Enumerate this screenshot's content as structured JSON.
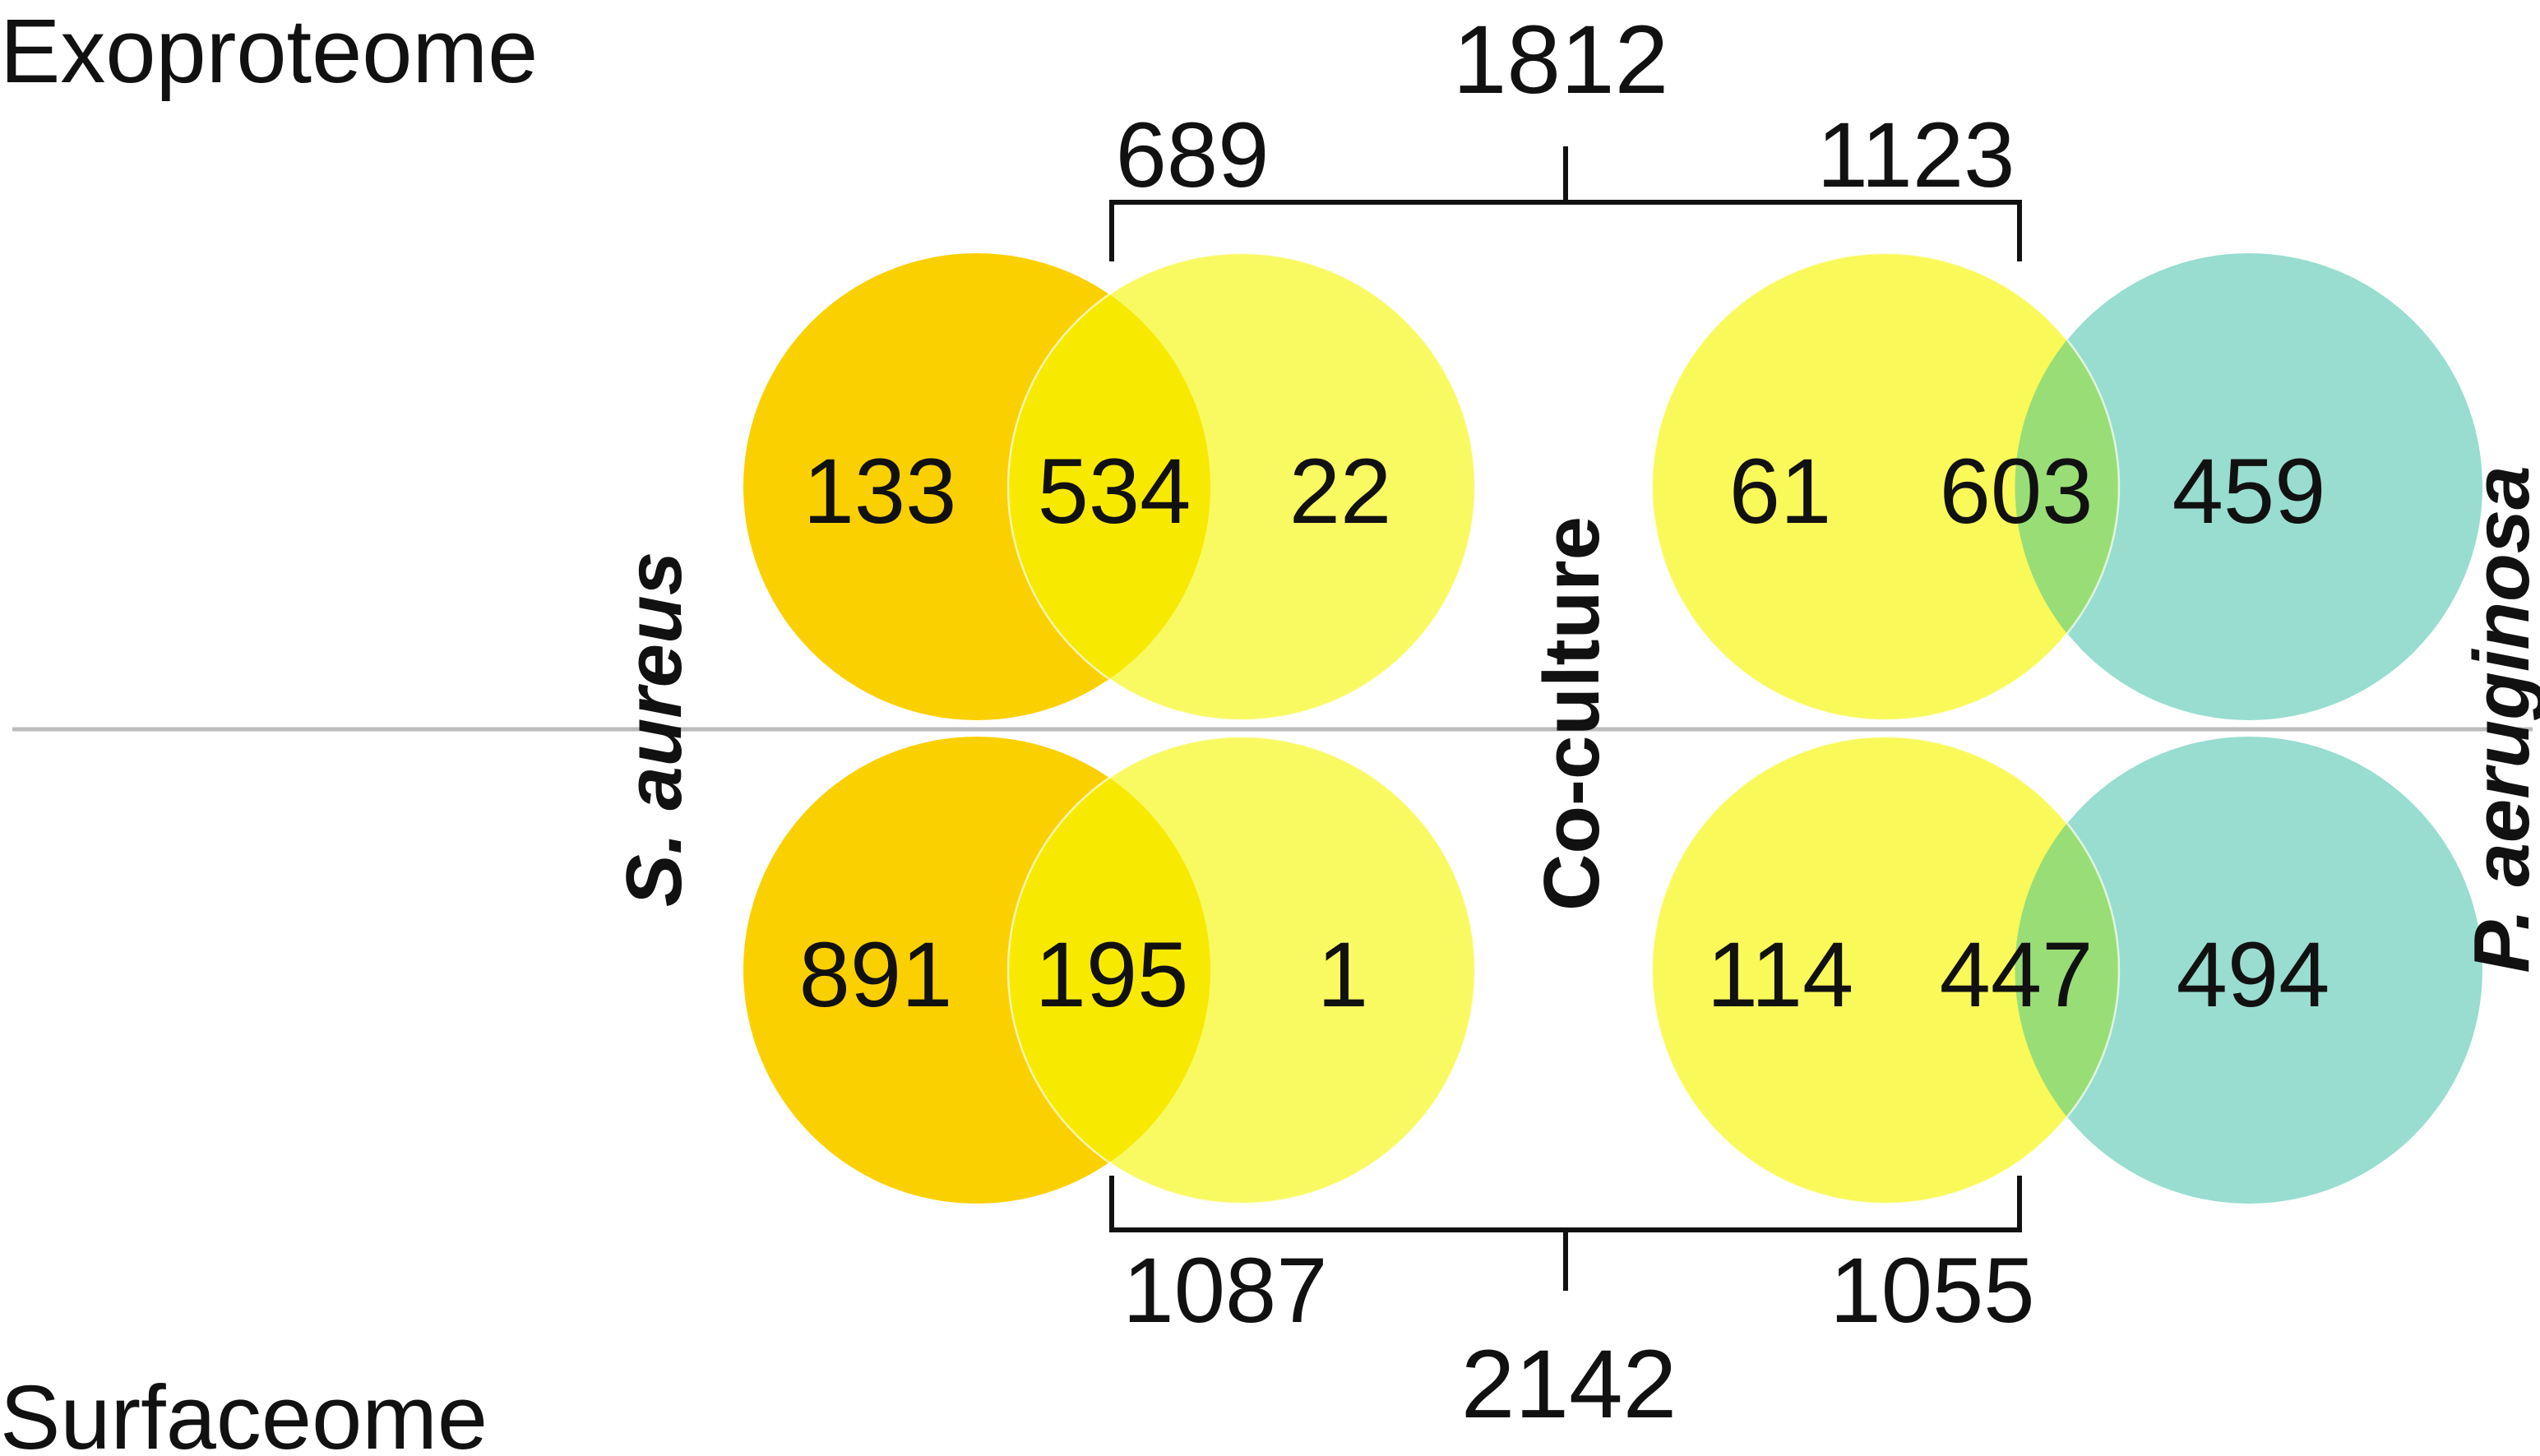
{
  "sections": {
    "top_label": "Exoproteome",
    "bottom_label": "Surfaceome"
  },
  "side_labels": {
    "left": {
      "italic": "S. aureus",
      "rest": ""
    },
    "middle": {
      "italic": "",
      "rest": "Co-culture"
    },
    "right": {
      "italic": "P. aeruginosa",
      "rest": ""
    }
  },
  "colors": {
    "s_aureus": "#fbd000",
    "co_culture": "#f9f95a",
    "p_aeruginosa": "#98ddd0",
    "overlap_left": "#f7ea00",
    "overlap_right": "#99dd77",
    "divider": "#bbbbbb"
  },
  "exoproteome": {
    "totals": {
      "overall": "1812",
      "left": "689",
      "right": "1123"
    },
    "left_venn": {
      "only_a": "133",
      "shared": "534",
      "only_b": "22"
    },
    "right_venn": {
      "only_a": "61",
      "shared": "603",
      "only_b": "459"
    }
  },
  "surfaceome": {
    "totals": {
      "overall": "2142",
      "left": "1087",
      "right": "1055"
    },
    "left_venn": {
      "only_a": "891",
      "shared": "195",
      "only_b": "1"
    },
    "right_venn": {
      "only_a": "114",
      "shared": "447",
      "only_b": "494"
    }
  }
}
